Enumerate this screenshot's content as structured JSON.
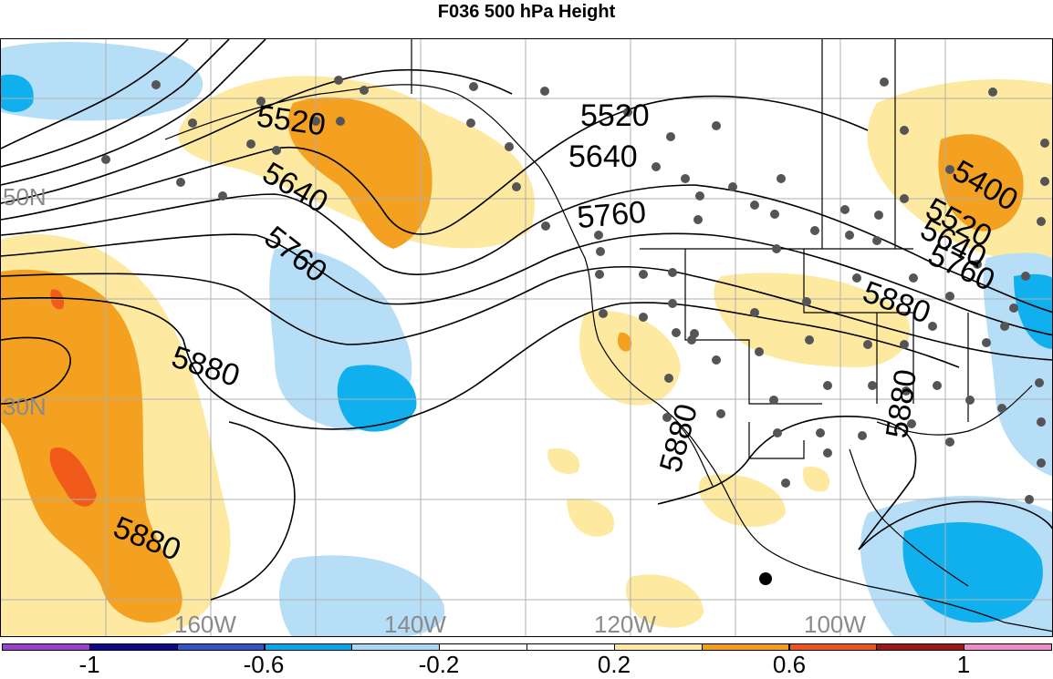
{
  "title": "F036 500 hPa Height",
  "grid_labels": {
    "lat_50": "50N",
    "lat_30": "30N",
    "lon_160": "160W",
    "lon_140": "140W",
    "lon_120": "120W",
    "lon_100": "100W"
  },
  "contour_labels": [
    "5520",
    "5640",
    "5760",
    "5880",
    "5520",
    "5640",
    "5760",
    "5400",
    "5520",
    "5640",
    "5760",
    "5880",
    "5880",
    "5880",
    "5880"
  ],
  "colorbar": {
    "colors": [
      "#9a40d0",
      "#0a0a8a",
      "#2d55c8",
      "#00aaee",
      "#a7d8f6",
      "#ffffff",
      "#ffffff",
      "#fde99a",
      "#f4a010",
      "#f05515",
      "#a01515",
      "#f08ac8"
    ],
    "labels": [
      "-1",
      "-0.6",
      "-0.2",
      "0.2",
      "0.6",
      "1"
    ]
  },
  "shading_colors": {
    "light_blue": "#b6def7",
    "blue": "#10b0ee",
    "light_yellow": "#fde9a0",
    "orange": "#f4a020",
    "red": "#f05a1a"
  }
}
